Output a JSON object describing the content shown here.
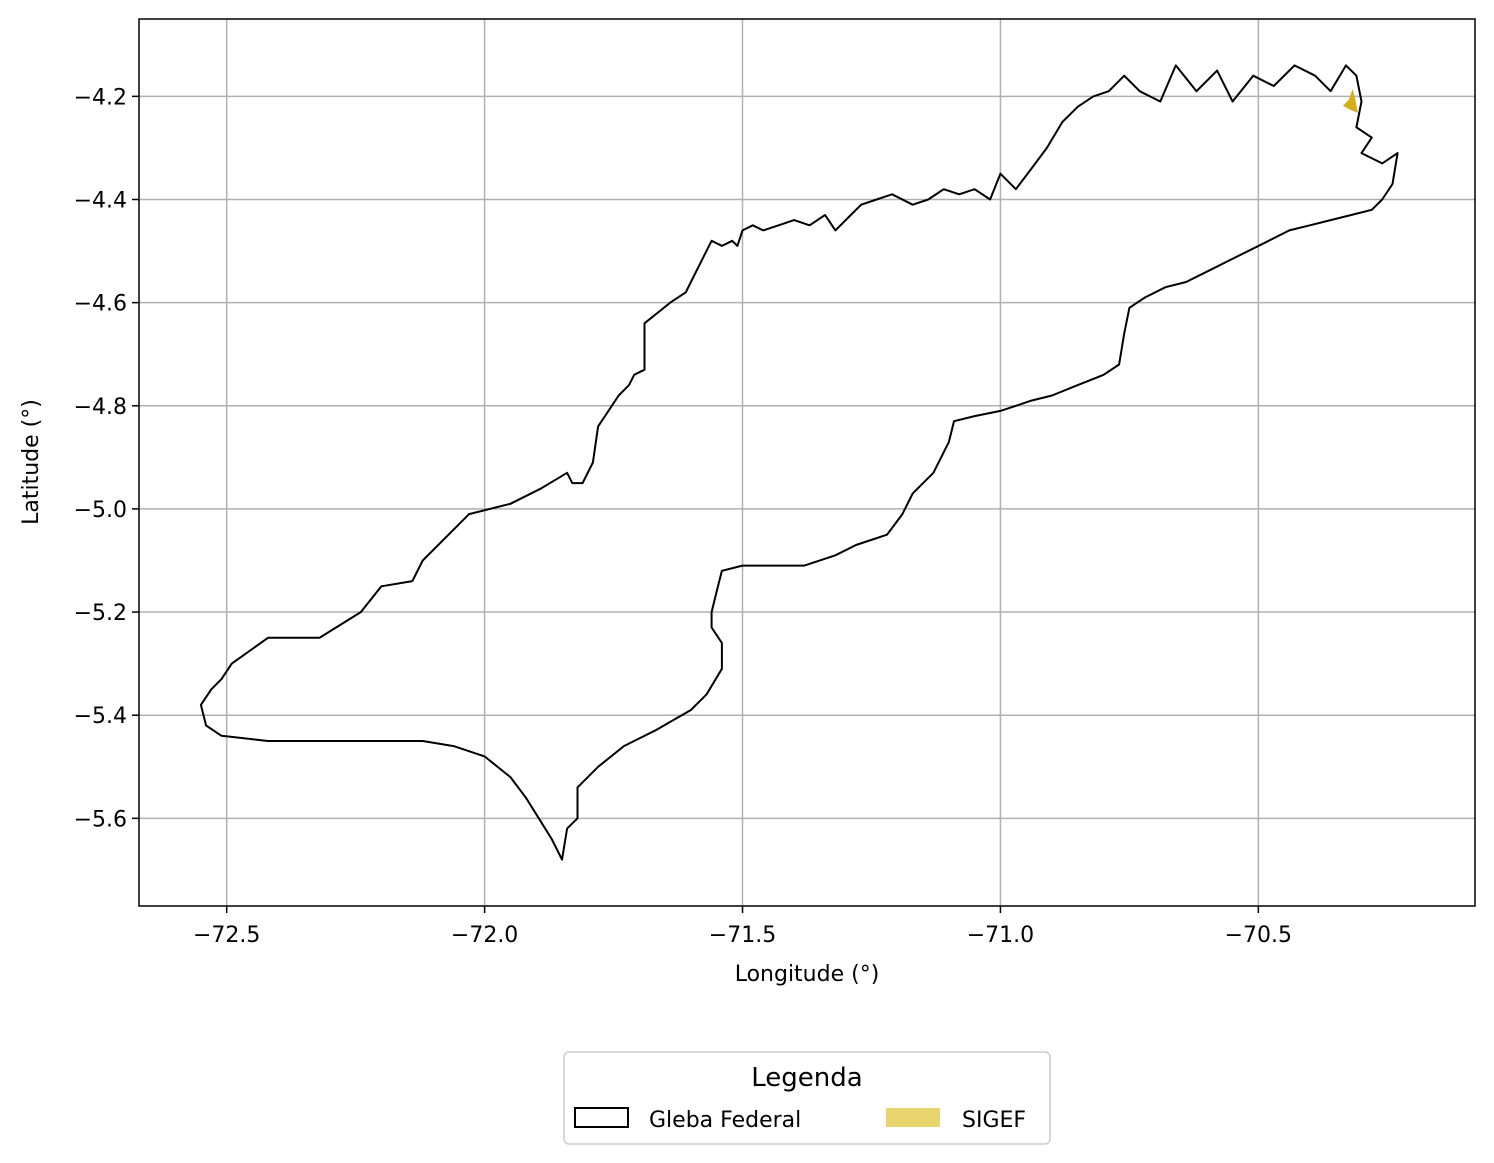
{
  "chart_data": {
    "type": "map",
    "xlabel": "Longitude (°)",
    "ylabel": "Latitude (°)",
    "xlim": [
      -72.67,
      -70.08
    ],
    "ylim": [
      -5.77,
      -4.05
    ],
    "xticks": [
      -72.5,
      -72.0,
      -71.5,
      -71.0,
      -70.5
    ],
    "yticks": [
      -4.2,
      -4.4,
      -4.6,
      -4.8,
      -5.0,
      -5.2,
      -5.4,
      -5.6
    ],
    "xtick_labels": [
      "−72.5",
      "−72.0",
      "−71.5",
      "−71.0",
      "−70.5"
    ],
    "ytick_labels": [
      "−4.2",
      "−4.4",
      "−4.6",
      "−4.8",
      "−5.0",
      "−5.2",
      "−5.4",
      "−5.6"
    ],
    "grid": true,
    "legend": {
      "title": "Legenda",
      "placement": "bottom-center",
      "entries": [
        {
          "label": "Gleba Federal",
          "style": "outline",
          "color": "#000000"
        },
        {
          "label": "SIGEF",
          "style": "fill",
          "color": "#e8d56e"
        }
      ]
    },
    "layers": [
      {
        "name": "Gleba Federal",
        "color": "#000000",
        "fill": "none",
        "coords": [
          [
            -72.55,
            -5.38
          ],
          [
            -72.53,
            -5.35
          ],
          [
            -72.51,
            -5.33
          ],
          [
            -72.49,
            -5.3
          ],
          [
            -72.42,
            -5.25
          ],
          [
            -72.32,
            -5.25
          ],
          [
            -72.24,
            -5.2
          ],
          [
            -72.2,
            -5.15
          ],
          [
            -72.14,
            -5.14
          ],
          [
            -72.12,
            -5.1
          ],
          [
            -72.03,
            -5.01
          ],
          [
            -71.95,
            -4.99
          ],
          [
            -71.89,
            -4.96
          ],
          [
            -71.84,
            -4.93
          ],
          [
            -71.83,
            -4.95
          ],
          [
            -71.81,
            -4.95
          ],
          [
            -71.79,
            -4.91
          ],
          [
            -71.78,
            -4.84
          ],
          [
            -71.74,
            -4.78
          ],
          [
            -71.72,
            -4.76
          ],
          [
            -71.71,
            -4.74
          ],
          [
            -71.69,
            -4.73
          ],
          [
            -71.69,
            -4.68
          ],
          [
            -71.69,
            -4.64
          ],
          [
            -71.64,
            -4.6
          ],
          [
            -71.61,
            -4.58
          ],
          [
            -71.6,
            -4.56
          ],
          [
            -71.57,
            -4.5
          ],
          [
            -71.56,
            -4.48
          ],
          [
            -71.54,
            -4.49
          ],
          [
            -71.52,
            -4.48
          ],
          [
            -71.51,
            -4.49
          ],
          [
            -71.5,
            -4.46
          ],
          [
            -71.48,
            -4.45
          ],
          [
            -71.46,
            -4.46
          ],
          [
            -71.43,
            -4.45
          ],
          [
            -71.4,
            -4.44
          ],
          [
            -71.37,
            -4.45
          ],
          [
            -71.34,
            -4.43
          ],
          [
            -71.32,
            -4.46
          ],
          [
            -71.29,
            -4.43
          ],
          [
            -71.27,
            -4.41
          ],
          [
            -71.24,
            -4.4
          ],
          [
            -71.21,
            -4.39
          ],
          [
            -71.17,
            -4.41
          ],
          [
            -71.14,
            -4.4
          ],
          [
            -71.11,
            -4.38
          ],
          [
            -71.08,
            -4.39
          ],
          [
            -71.05,
            -4.38
          ],
          [
            -71.02,
            -4.4
          ],
          [
            -71.0,
            -4.35
          ],
          [
            -70.97,
            -4.38
          ],
          [
            -70.94,
            -4.34
          ],
          [
            -70.91,
            -4.3
          ],
          [
            -70.88,
            -4.25
          ],
          [
            -70.85,
            -4.22
          ],
          [
            -70.82,
            -4.2
          ],
          [
            -70.79,
            -4.19
          ],
          [
            -70.76,
            -4.16
          ],
          [
            -70.73,
            -4.19
          ],
          [
            -70.69,
            -4.21
          ],
          [
            -70.66,
            -4.14
          ],
          [
            -70.62,
            -4.19
          ],
          [
            -70.58,
            -4.15
          ],
          [
            -70.55,
            -4.21
          ],
          [
            -70.51,
            -4.16
          ],
          [
            -70.47,
            -4.18
          ],
          [
            -70.43,
            -4.14
          ],
          [
            -70.39,
            -4.16
          ],
          [
            -70.36,
            -4.19
          ],
          [
            -70.33,
            -4.14
          ],
          [
            -70.31,
            -4.16
          ],
          [
            -70.3,
            -4.21
          ],
          [
            -70.31,
            -4.26
          ],
          [
            -70.28,
            -4.28
          ],
          [
            -70.3,
            -4.31
          ],
          [
            -70.26,
            -4.33
          ],
          [
            -70.23,
            -4.31
          ],
          [
            -70.24,
            -4.37
          ],
          [
            -70.26,
            -4.4
          ],
          [
            -70.28,
            -4.42
          ],
          [
            -70.32,
            -4.43
          ],
          [
            -70.36,
            -4.44
          ],
          [
            -70.4,
            -4.45
          ],
          [
            -70.44,
            -4.46
          ],
          [
            -70.48,
            -4.48
          ],
          [
            -70.52,
            -4.5
          ],
          [
            -70.56,
            -4.52
          ],
          [
            -70.6,
            -4.54
          ],
          [
            -70.64,
            -4.56
          ],
          [
            -70.68,
            -4.57
          ],
          [
            -70.72,
            -4.59
          ],
          [
            -70.75,
            -4.61
          ],
          [
            -70.76,
            -4.66
          ],
          [
            -70.77,
            -4.72
          ],
          [
            -70.8,
            -4.74
          ],
          [
            -70.85,
            -4.76
          ],
          [
            -70.9,
            -4.78
          ],
          [
            -70.94,
            -4.79
          ],
          [
            -70.97,
            -4.8
          ],
          [
            -71.0,
            -4.81
          ],
          [
            -71.05,
            -4.82
          ],
          [
            -71.09,
            -4.83
          ],
          [
            -71.1,
            -4.87
          ],
          [
            -71.13,
            -4.93
          ],
          [
            -71.17,
            -4.97
          ],
          [
            -71.19,
            -5.01
          ],
          [
            -71.22,
            -5.05
          ],
          [
            -71.28,
            -5.07
          ],
          [
            -71.32,
            -5.09
          ],
          [
            -71.38,
            -5.11
          ],
          [
            -71.44,
            -5.11
          ],
          [
            -71.5,
            -5.11
          ],
          [
            -71.54,
            -5.12
          ],
          [
            -71.55,
            -5.16
          ],
          [
            -71.56,
            -5.2
          ],
          [
            -71.56,
            -5.23
          ],
          [
            -71.54,
            -5.26
          ],
          [
            -71.54,
            -5.31
          ],
          [
            -71.57,
            -5.36
          ],
          [
            -71.6,
            -5.39
          ],
          [
            -71.67,
            -5.43
          ],
          [
            -71.73,
            -5.46
          ],
          [
            -71.78,
            -5.5
          ],
          [
            -71.82,
            -5.54
          ],
          [
            -71.82,
            -5.6
          ],
          [
            -71.84,
            -5.62
          ],
          [
            -71.85,
            -5.68
          ],
          [
            -71.87,
            -5.64
          ],
          [
            -71.92,
            -5.56
          ],
          [
            -71.95,
            -5.52
          ],
          [
            -72.0,
            -5.48
          ],
          [
            -72.06,
            -5.46
          ],
          [
            -72.12,
            -5.45
          ],
          [
            -72.25,
            -5.45
          ],
          [
            -72.32,
            -5.45
          ],
          [
            -72.42,
            -5.45
          ],
          [
            -72.51,
            -5.44
          ],
          [
            -72.54,
            -5.42
          ],
          [
            -72.55,
            -5.38
          ]
        ]
      },
      {
        "name": "SIGEF",
        "color": "#d4af1a",
        "fill": "#d4af1a",
        "coords": [
          [
            -70.317,
            -4.186
          ],
          [
            -70.312,
            -4.205
          ],
          [
            -70.307,
            -4.232
          ],
          [
            -70.322,
            -4.226
          ],
          [
            -70.336,
            -4.218
          ],
          [
            -70.325,
            -4.207
          ],
          [
            -70.317,
            -4.186
          ]
        ]
      }
    ]
  }
}
